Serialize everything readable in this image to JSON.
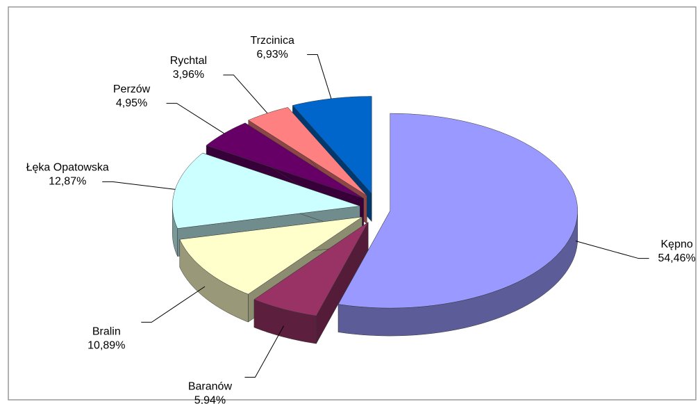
{
  "chart_data": {
    "type": "pie3d",
    "categories": [
      "Kępno",
      "Baranów",
      "Bralin",
      "Łęka Opatowska",
      "Perzów",
      "Rychtal",
      "Trzcinica"
    ],
    "values": [
      54.46,
      5.94,
      10.89,
      12.87,
      4.95,
      3.96,
      6.93
    ],
    "value_labels": [
      "54,46%",
      "5,94%",
      "10,89%",
      "12,87%",
      "4,95%",
      "3,96%",
      "6,93%"
    ],
    "colors": [
      "#9999ff",
      "#993366",
      "#ffffcc",
      "#ccffff",
      "#660066",
      "#ff8080",
      "#0066cc"
    ]
  }
}
